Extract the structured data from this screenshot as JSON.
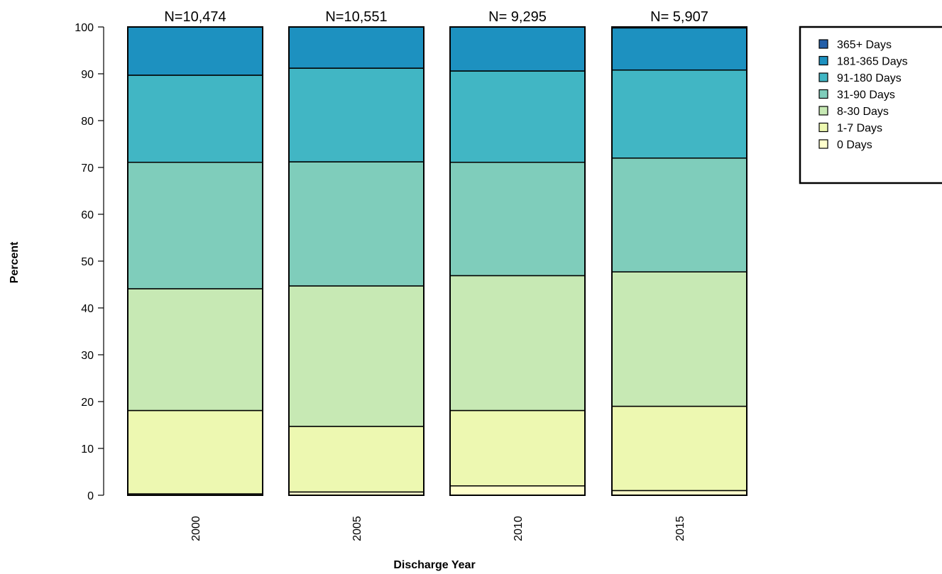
{
  "chart_data": {
    "type": "bar",
    "stacked": true,
    "title": "",
    "xlabel": "Discharge Year",
    "ylabel": "Percent",
    "ylim": [
      0,
      100
    ],
    "yticks": [
      0,
      10,
      20,
      30,
      40,
      50,
      60,
      70,
      80,
      90,
      100
    ],
    "categories": [
      "2000",
      "2005",
      "2010",
      "2015"
    ],
    "bar_annotations": [
      "N=10,474",
      "N=10,551",
      "N= 9,295",
      "N= 5,907"
    ],
    "series": [
      {
        "name": "0 Days",
        "color": "#FFFFCC",
        "values": [
          0.3,
          0.7,
          2.0,
          1.0
        ]
      },
      {
        "name": "1-7 Days",
        "color": "#EDF8B1",
        "values": [
          17.8,
          14.0,
          16.1,
          18.0
        ]
      },
      {
        "name": "8-30 Days",
        "color": "#C7E9B4",
        "values": [
          26.0,
          30.0,
          28.8,
          28.7
        ]
      },
      {
        "name": "31-90 Days",
        "color": "#7FCDBB",
        "values": [
          27.0,
          26.5,
          24.2,
          24.3
        ]
      },
      {
        "name": "91-180 Days",
        "color": "#41B6C4",
        "values": [
          18.6,
          20.0,
          19.5,
          18.8
        ]
      },
      {
        "name": "181-365 Days",
        "color": "#1D91C0",
        "values": [
          10.3,
          8.8,
          9.4,
          9.0
        ]
      },
      {
        "name": "365+ Days",
        "color": "#225EA8",
        "values": [
          0.0,
          0.0,
          0.0,
          0.2
        ]
      }
    ],
    "legend": {
      "position": "top-right",
      "order": [
        "365+ Days",
        "181-365 Days",
        "91-180 Days",
        "31-90 Days",
        "8-30 Days",
        "1-7 Days",
        "0 Days"
      ]
    },
    "grid": false
  }
}
